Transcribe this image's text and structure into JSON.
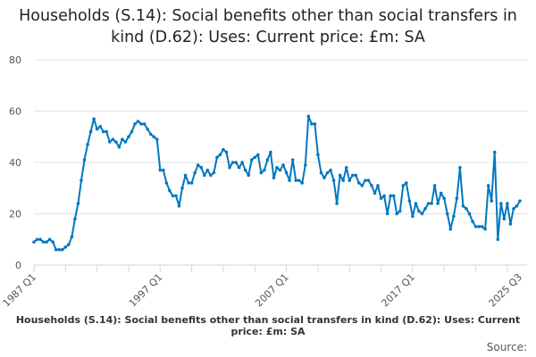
{
  "chart_data": {
    "type": "line",
    "title": "Households (S.14): Social benefits other than social transfers in kind (D.62): Uses: Current price: £m: SA",
    "xlabel": "Households (S.14): Social benefits other than social transfers in kind (D.62): Uses: Current price: £m: SA",
    "ylabel": "",
    "source": "Source:",
    "x_start": "1987 Q1",
    "x_end": "2025 Q3",
    "x_tick_labels": [
      "1987 Q1",
      "1997 Q1",
      "2007 Q1",
      "2017 Q1",
      "2025 Q3"
    ],
    "y_ticks": [
      0,
      20,
      40,
      60,
      80
    ],
    "ylim": [
      0,
      80
    ],
    "grid": true,
    "line_color": "#0077c0",
    "values": [
      9,
      10,
      10,
      9,
      9,
      10,
      9,
      6,
      6,
      6,
      7,
      8,
      11,
      18,
      24,
      33,
      41,
      47,
      52,
      57,
      53,
      54,
      52,
      52,
      48,
      49,
      48,
      46,
      49,
      48,
      50,
      52,
      55,
      56,
      55,
      55,
      53,
      51,
      50,
      49,
      37,
      37,
      32,
      29,
      27,
      27,
      23,
      30,
      35,
      32,
      32,
      36,
      39,
      38,
      35,
      37,
      35,
      36,
      42,
      43,
      45,
      44,
      38,
      40,
      40,
      38,
      40,
      37,
      35,
      41,
      42,
      43,
      36,
      37,
      41,
      44,
      34,
      38,
      37,
      39,
      36,
      33,
      41,
      33,
      33,
      32,
      39,
      58,
      55,
      55,
      43,
      36,
      34,
      36,
      37,
      33,
      24,
      35,
      33,
      38,
      33,
      35,
      35,
      32,
      31,
      33,
      33,
      31,
      28,
      31,
      26,
      27,
      20,
      27,
      27,
      20,
      21,
      31,
      32,
      25,
      19,
      24,
      21,
      20,
      22,
      24,
      24,
      31,
      24,
      28,
      26,
      20,
      14,
      19,
      26,
      38,
      23,
      22,
      20,
      17,
      15,
      15,
      15,
      14,
      31,
      25,
      44,
      10,
      24,
      18,
      24,
      16,
      22,
      23,
      25
    ]
  }
}
